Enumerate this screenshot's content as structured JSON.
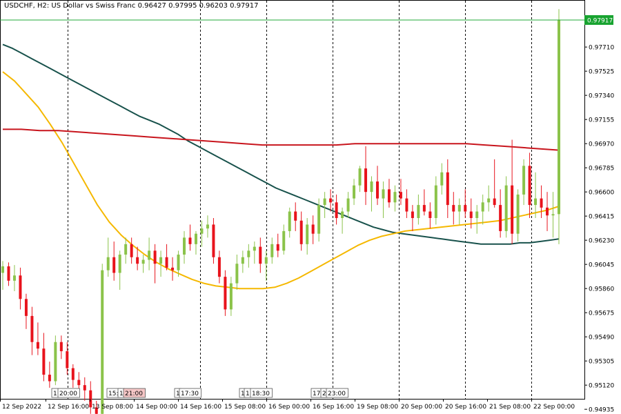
{
  "title": {
    "symbol": "USDCHF, H2:",
    "description": "US Dollar vs Swiss Franc",
    "ohlc": "0.96427 0.97995 0.96203 0.97917"
  },
  "colors": {
    "background": "#ffffff",
    "bull": "#8bc34a",
    "bear": "#e8131c",
    "ma_teal": "#17514b",
    "ma_orange": "#f5b800",
    "ma_red": "#c8141c",
    "price_line": "#22a838",
    "price_badge": "#18a330",
    "grid": "#000000"
  },
  "chart_data": {
    "type": "candlestick",
    "symbol": "USDCHF",
    "timeframe": "H2",
    "last_price": "0.97917",
    "ylim": [
      0.9485,
      0.981
    ],
    "y_ticks": [
      "0.97710",
      "0.97525",
      "0.97340",
      "0.97155",
      "0.96970",
      "0.96785",
      "0.96600",
      "0.96415",
      "0.96230",
      "0.96045",
      "0.95860",
      "0.95675",
      "0.95490",
      "0.95305",
      "0.95120",
      "0.94935"
    ],
    "x_tick_labels": [
      "12 Sep 2022",
      "12 Sep 16:00",
      "13 Sep 08:00",
      "14 Sep 00:00",
      "14 Sep 16:00",
      "15 Sep 08:00",
      "16 Sep 00:00",
      "16 Sep 16:00",
      "19 Sep 08:00",
      "20 Sep 00:00",
      "20 Sep 16:00",
      "21 Sep 08:00",
      "22 Sep 00:00"
    ],
    "separator_markers": [
      "1",
      "20:00",
      "15:",
      "1",
      "21:00",
      "1",
      "17:30",
      "1",
      "1",
      "18:30",
      "17:",
      "2",
      "23:00"
    ],
    "candles": [
      [
        0.9598,
        0.9607,
        0.9585,
        0.9603
      ],
      [
        0.9603,
        0.9606,
        0.9588,
        0.9592
      ],
      [
        0.9592,
        0.9604,
        0.9584,
        0.9596
      ],
      [
        0.9596,
        0.9602,
        0.957,
        0.9578
      ],
      [
        0.9578,
        0.9582,
        0.9555,
        0.9565
      ],
      [
        0.9565,
        0.9572,
        0.9535,
        0.9545
      ],
      [
        0.9545,
        0.956,
        0.9535,
        0.954
      ],
      [
        0.954,
        0.9552,
        0.9515,
        0.952
      ],
      [
        0.952,
        0.953,
        0.951,
        0.9515
      ],
      [
        0.9515,
        0.955,
        0.9512,
        0.9545
      ],
      [
        0.9545,
        0.955,
        0.9532,
        0.9538
      ],
      [
        0.9538,
        0.9545,
        0.952,
        0.9525
      ],
      [
        0.9525,
        0.9528,
        0.951,
        0.9516
      ],
      [
        0.9516,
        0.9522,
        0.9505,
        0.9512
      ],
      [
        0.9512,
        0.9518,
        0.95,
        0.9508
      ],
      [
        0.9508,
        0.9515,
        0.949,
        0.9495
      ],
      [
        0.9495,
        0.95,
        0.9485,
        0.949
      ],
      [
        0.949,
        0.9605,
        0.9488,
        0.96
      ],
      [
        0.96,
        0.9625,
        0.9595,
        0.961
      ],
      [
        0.961,
        0.9622,
        0.9592,
        0.9598
      ],
      [
        0.9598,
        0.9615,
        0.9585,
        0.9612
      ],
      [
        0.9612,
        0.9625,
        0.9605,
        0.962
      ],
      [
        0.962,
        0.9625,
        0.9605,
        0.961
      ],
      [
        0.961,
        0.9618,
        0.96,
        0.9605
      ],
      [
        0.9605,
        0.9612,
        0.9598,
        0.9608
      ],
      [
        0.9608,
        0.9625,
        0.96,
        0.9615
      ],
      [
        0.9615,
        0.962,
        0.959,
        0.9605
      ],
      [
        0.9605,
        0.9615,
        0.9595,
        0.961
      ],
      [
        0.961,
        0.962,
        0.96,
        0.9602
      ],
      [
        0.9602,
        0.961,
        0.9592,
        0.96
      ],
      [
        0.96,
        0.9615,
        0.9595,
        0.9612
      ],
      [
        0.9612,
        0.963,
        0.9605,
        0.9625
      ],
      [
        0.9625,
        0.9635,
        0.9615,
        0.962
      ],
      [
        0.962,
        0.963,
        0.9612,
        0.9628
      ],
      [
        0.9628,
        0.9638,
        0.9618,
        0.9632
      ],
      [
        0.9632,
        0.9642,
        0.9625,
        0.9635
      ],
      [
        0.9635,
        0.964,
        0.9605,
        0.961
      ],
      [
        0.961,
        0.9615,
        0.959,
        0.9595
      ],
      [
        0.9595,
        0.96,
        0.9565,
        0.957
      ],
      [
        0.957,
        0.9595,
        0.9565,
        0.959
      ],
      [
        0.959,
        0.9612,
        0.9585,
        0.9605
      ],
      [
        0.9605,
        0.9615,
        0.9598,
        0.961
      ],
      [
        0.961,
        0.962,
        0.9602,
        0.9615
      ],
      [
        0.9615,
        0.9622,
        0.9605,
        0.9618
      ],
      [
        0.9618,
        0.9625,
        0.9598,
        0.9605
      ],
      [
        0.9605,
        0.9615,
        0.9592,
        0.961
      ],
      [
        0.961,
        0.9625,
        0.9605,
        0.962
      ],
      [
        0.962,
        0.9628,
        0.961,
        0.9615
      ],
      [
        0.9615,
        0.9635,
        0.9612,
        0.963
      ],
      [
        0.963,
        0.9648,
        0.9625,
        0.9645
      ],
      [
        0.9645,
        0.9652,
        0.963,
        0.9638
      ],
      [
        0.9638,
        0.9645,
        0.9615,
        0.962
      ],
      [
        0.962,
        0.964,
        0.9612,
        0.9635
      ],
      [
        0.9635,
        0.9642,
        0.962,
        0.9628
      ],
      [
        0.9628,
        0.9655,
        0.9622,
        0.965
      ],
      [
        0.965,
        0.966,
        0.964,
        0.9655
      ],
      [
        0.9655,
        0.9662,
        0.9645,
        0.9652
      ],
      [
        0.9652,
        0.9658,
        0.9635,
        0.964
      ],
      [
        0.964,
        0.9648,
        0.9628,
        0.9645
      ],
      [
        0.9645,
        0.966,
        0.964,
        0.9655
      ],
      [
        0.9655,
        0.967,
        0.965,
        0.9665
      ],
      [
        0.9665,
        0.968,
        0.966,
        0.9678
      ],
      [
        0.9678,
        0.9695,
        0.965,
        0.966
      ],
      [
        0.966,
        0.9672,
        0.9645,
        0.9668
      ],
      [
        0.9668,
        0.968,
        0.965,
        0.9655
      ],
      [
        0.9655,
        0.9668,
        0.964,
        0.9662
      ],
      [
        0.9662,
        0.967,
        0.9648,
        0.9652
      ],
      [
        0.9652,
        0.9665,
        0.9645,
        0.966
      ],
      [
        0.966,
        0.967,
        0.965,
        0.9655
      ],
      [
        0.9655,
        0.9662,
        0.964,
        0.9645
      ],
      [
        0.9645,
        0.965,
        0.963,
        0.964
      ],
      [
        0.964,
        0.9658,
        0.9635,
        0.965
      ],
      [
        0.965,
        0.9662,
        0.9642,
        0.9645
      ],
      [
        0.9645,
        0.9652,
        0.9632,
        0.964
      ],
      [
        0.964,
        0.9672,
        0.9635,
        0.9665
      ],
      [
        0.9665,
        0.9682,
        0.9658,
        0.9675
      ],
      [
        0.9675,
        0.9685,
        0.964,
        0.965
      ],
      [
        0.965,
        0.966,
        0.9635,
        0.9645
      ],
      [
        0.9645,
        0.9655,
        0.9635,
        0.965
      ],
      [
        0.965,
        0.9662,
        0.964,
        0.9645
      ],
      [
        0.9645,
        0.9655,
        0.9632,
        0.964
      ],
      [
        0.964,
        0.965,
        0.9628,
        0.9645
      ],
      [
        0.9645,
        0.9658,
        0.9635,
        0.9652
      ],
      [
        0.9652,
        0.9665,
        0.9645,
        0.9655
      ],
      [
        0.9655,
        0.9685,
        0.9648,
        0.965
      ],
      [
        0.965,
        0.9662,
        0.9625,
        0.963
      ],
      [
        0.963,
        0.9672,
        0.9625,
        0.9665
      ],
      [
        0.9665,
        0.97,
        0.962,
        0.9628
      ],
      [
        0.9628,
        0.9662,
        0.9622,
        0.9658
      ],
      [
        0.9658,
        0.9685,
        0.965,
        0.968
      ],
      [
        0.968,
        0.969,
        0.964,
        0.965
      ],
      [
        0.965,
        0.9675,
        0.964,
        0.9655
      ],
      [
        0.9655,
        0.9665,
        0.964,
        0.9648
      ],
      [
        0.9648,
        0.966,
        0.963,
        0.9642
      ],
      [
        0.9642,
        0.966,
        0.9625,
        0.9643
      ],
      [
        0.9643,
        0.98,
        0.962,
        0.9792
      ]
    ],
    "moving_averages": [
      {
        "color": "ma_teal",
        "values": [
          0.9773,
          0.977,
          0.9766,
          0.9762,
          0.9758,
          0.9754,
          0.975,
          0.9746,
          0.9742,
          0.9738,
          0.9734,
          0.973,
          0.9726,
          0.9722,
          0.9718,
          0.9715,
          0.9712,
          0.9708,
          0.9704,
          0.9699,
          0.9695,
          0.9691,
          0.9687,
          0.9683,
          0.9679,
          0.9675,
          0.9671,
          0.9667,
          0.9663,
          0.966,
          0.9657,
          0.9654,
          0.9651,
          0.9648,
          0.9645,
          0.9642,
          0.9639,
          0.9636,
          0.9633,
          0.9631,
          0.9629,
          0.9628,
          0.9627,
          0.9626,
          0.9625,
          0.9624,
          0.9623,
          0.9622,
          0.9621,
          0.962,
          0.962,
          0.962,
          0.962,
          0.9621,
          0.9621,
          0.9622,
          0.9623,
          0.9624
        ]
      },
      {
        "color": "ma_orange",
        "values": [
          0.9752,
          0.9745,
          0.9735,
          0.9725,
          0.9712,
          0.9698,
          0.9682,
          0.9666,
          0.965,
          0.9637,
          0.9627,
          0.9619,
          0.9612,
          0.9606,
          0.9601,
          0.9597,
          0.9593,
          0.959,
          0.9588,
          0.9587,
          0.9586,
          0.9586,
          0.9586,
          0.9587,
          0.959,
          0.9594,
          0.9599,
          0.9604,
          0.9609,
          0.9614,
          0.9619,
          0.9623,
          0.9626,
          0.9628,
          0.963,
          0.9631,
          0.9632,
          0.9633,
          0.9634,
          0.9635,
          0.9636,
          0.9637,
          0.9638,
          0.964,
          0.9642,
          0.9644,
          0.9646,
          0.9649
        ]
      },
      {
        "color": "ma_red",
        "values": [
          0.9708,
          0.9708,
          0.9707,
          0.9707,
          0.9706,
          0.9705,
          0.9704,
          0.9703,
          0.9702,
          0.9701,
          0.97,
          0.9699,
          0.9698,
          0.9697,
          0.9696,
          0.9696,
          0.9696,
          0.9696,
          0.9696,
          0.9697,
          0.9697,
          0.9697,
          0.9697,
          0.9697,
          0.9697,
          0.9697,
          0.9696,
          0.9695,
          0.9694,
          0.9693,
          0.9692
        ]
      }
    ]
  }
}
